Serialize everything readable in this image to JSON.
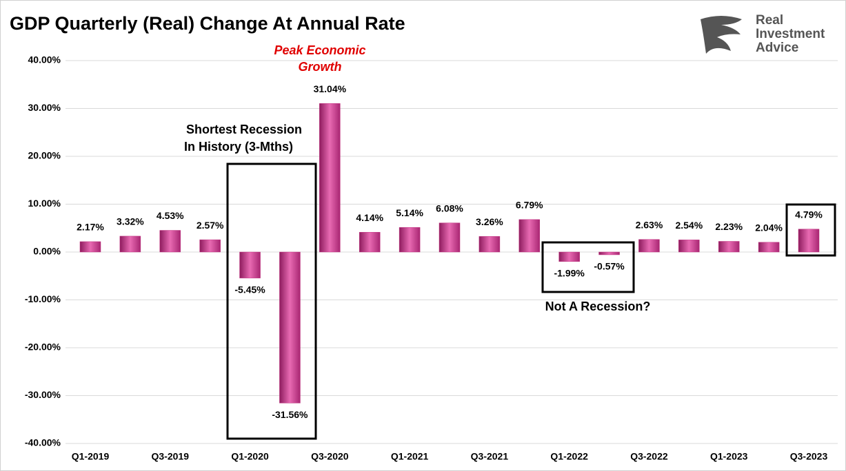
{
  "chart_data": {
    "type": "bar",
    "title": "GDP Quarterly (Real) Change At Annual Rate",
    "logo": [
      "Real",
      "Investment",
      "Advice"
    ],
    "annotations": [
      [
        "Peak Economic",
        "Growth"
      ],
      [
        "Shortest Recession",
        "In History (3-Mths)"
      ],
      [
        "Not A Recession?"
      ]
    ],
    "categories": [
      "Q1-2019",
      null,
      "Q3-2019",
      null,
      "Q1-2020",
      null,
      "Q3-2020",
      null,
      "Q1-2021",
      null,
      "Q3-2021",
      null,
      "Q1-2022",
      null,
      "Q3-2022",
      null,
      "Q1-2023",
      null,
      "Q3-2023"
    ],
    "values": [
      2.17,
      3.32,
      4.53,
      2.57,
      -5.45,
      -31.56,
      31.04,
      4.14,
      5.14,
      6.08,
      3.26,
      6.79,
      -1.99,
      -0.57,
      2.63,
      2.54,
      2.23,
      2.04,
      4.79
    ],
    "value_labels": [
      "2.17%",
      "3.32%",
      "4.53%",
      "2.57%",
      "-5.45%",
      "-31.56%",
      "31.04%",
      "4.14%",
      "5.14%",
      "6.08%",
      "3.26%",
      "6.79%",
      "-1.99%",
      "-0.57%",
      "2.63%",
      "2.54%",
      "2.23%",
      "2.04%",
      "4.79%"
    ],
    "color": "#c2307f",
    "ylim": [
      -40,
      40
    ],
    "yticks": [
      {
        "value": -40,
        "label": "-40.00%"
      },
      {
        "value": -30,
        "label": "-30.00%"
      },
      {
        "value": -20,
        "label": "-20.00%"
      },
      {
        "value": -10,
        "label": "-10.00%"
      },
      {
        "value": 0,
        "label": "0.00%"
      },
      {
        "value": 10,
        "label": "10.00%"
      },
      {
        "value": 20,
        "label": "20.00%"
      },
      {
        "value": 30,
        "label": "30.00%"
      },
      {
        "value": 40,
        "label": "40.00%"
      }
    ],
    "grid": true
  }
}
